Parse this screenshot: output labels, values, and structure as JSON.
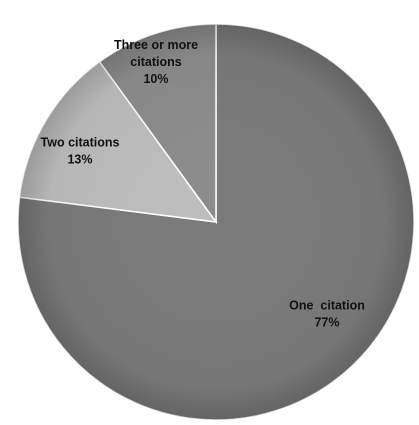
{
  "chart_data": {
    "type": "pie",
    "slices": [
      {
        "name": "One citation",
        "label_lines": [
          "One  citation",
          "77%"
        ],
        "value": 77,
        "color": "#7a7a7a"
      },
      {
        "name": "Two citations",
        "label_lines": [
          "Two citations",
          "13%"
        ],
        "value": 13,
        "color": "#bdbdbd"
      },
      {
        "name": "Three or more citations",
        "label_lines": [
          "Three or more",
          "citations",
          "10%"
        ],
        "value": 10,
        "color": "#8c8c8c"
      }
    ],
    "start": "top, clockwise",
    "legend": "none"
  }
}
